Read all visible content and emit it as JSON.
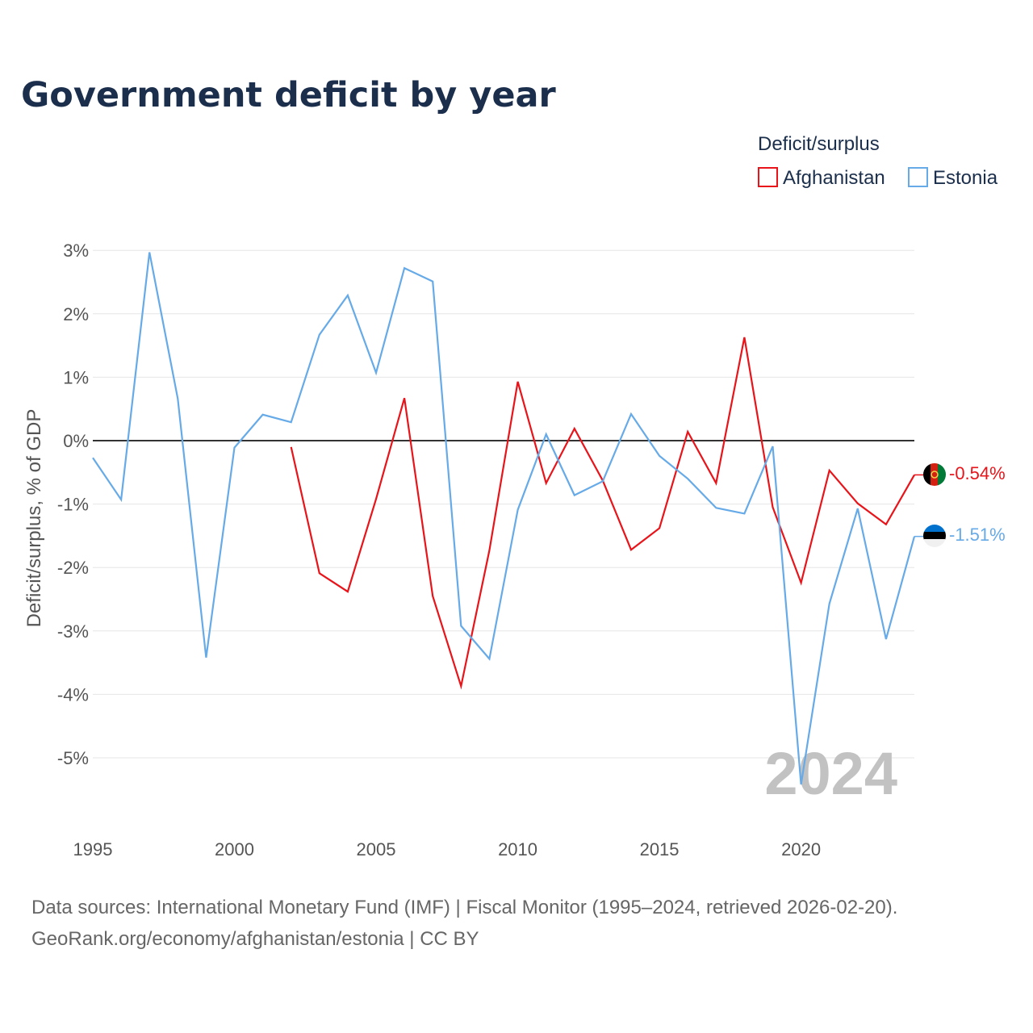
{
  "colors": {
    "afghanistan": "#e8141a",
    "estonia": "#66aae8",
    "title": "#1b2e4b",
    "grid": "#e6e6e6",
    "zero_line": "#333333",
    "watermark": "#c2c2c2"
  },
  "chart_data": {
    "type": "line",
    "title": "Government deficit by year",
    "legend": {
      "title": "Deficit/surplus",
      "placement": "top-right",
      "entries": [
        "Afghanistan",
        "Estonia"
      ]
    },
    "ylabel": "Deficit/surplus, % of GDP",
    "xlabel": "",
    "xlim": [
      1995,
      2024
    ],
    "ylim": [
      -6,
      3.3
    ],
    "x_ticks": [
      {
        "value": 1995,
        "label": "1995"
      },
      {
        "value": 2000,
        "label": "2000"
      },
      {
        "value": 2005,
        "label": "2005"
      },
      {
        "value": 2010,
        "label": "2010"
      },
      {
        "value": 2015,
        "label": "2015"
      },
      {
        "value": 2020,
        "label": "2020"
      }
    ],
    "y_ticks": [
      {
        "value": 3,
        "label": "3%"
      },
      {
        "value": 2,
        "label": "2%"
      },
      {
        "value": 1,
        "label": "1%"
      },
      {
        "value": 0,
        "label": "0%"
      },
      {
        "value": -1,
        "label": "-1%"
      },
      {
        "value": -2,
        "label": "-2%"
      },
      {
        "value": -3,
        "label": "-3%"
      },
      {
        "value": -4,
        "label": "-4%"
      },
      {
        "value": -5,
        "label": "-5%"
      }
    ],
    "series": [
      {
        "name": "Afghanistan",
        "color_key": "afghanistan",
        "flag_icon": "afghanistan-flag-icon",
        "end_label": "-0.54%",
        "x": [
          2002,
          2003,
          2004,
          2005,
          2006,
          2007,
          2008,
          2009,
          2010,
          2011,
          2012,
          2013,
          2014,
          2015,
          2016,
          2017,
          2018,
          2019,
          2020,
          2021,
          2022,
          2023,
          2024
        ],
        "values": [
          -0.1,
          -2.09,
          -2.38,
          -0.92,
          0.67,
          -2.45,
          -3.87,
          -1.73,
          0.93,
          -0.67,
          0.19,
          -0.63,
          -1.72,
          -1.38,
          0.14,
          -0.67,
          1.63,
          -1.05,
          -2.24,
          -0.47,
          -0.99,
          -1.32,
          -0.54
        ]
      },
      {
        "name": "Estonia",
        "color_key": "estonia",
        "flag_icon": "estonia-flag-icon",
        "end_label": "-1.51%",
        "x": [
          1995,
          1996,
          1997,
          1998,
          1999,
          2000,
          2001,
          2002,
          2003,
          2004,
          2005,
          2006,
          2007,
          2008,
          2009,
          2010,
          2011,
          2012,
          2013,
          2014,
          2015,
          2016,
          2017,
          2018,
          2019,
          2020,
          2021,
          2022,
          2023,
          2024
        ],
        "values": [
          -0.27,
          -0.93,
          2.97,
          0.66,
          -3.42,
          -0.11,
          0.41,
          0.29,
          1.67,
          2.29,
          1.07,
          2.72,
          2.51,
          -2.92,
          -3.44,
          -1.09,
          0.1,
          -0.86,
          -0.64,
          0.42,
          -0.24,
          -0.6,
          -1.06,
          -1.15,
          -0.09,
          -5.42,
          -2.57,
          -1.07,
          -3.13,
          -1.51
        ]
      }
    ],
    "annotation": "2024"
  },
  "footer": {
    "source_line": "Data sources: International Monetary Fund (IMF) | Fiscal Monitor (1995–2024, retrieved 2026-02-20).",
    "credit_line": "GeoRank.org/economy/afghanistan/estonia | CC BY"
  }
}
